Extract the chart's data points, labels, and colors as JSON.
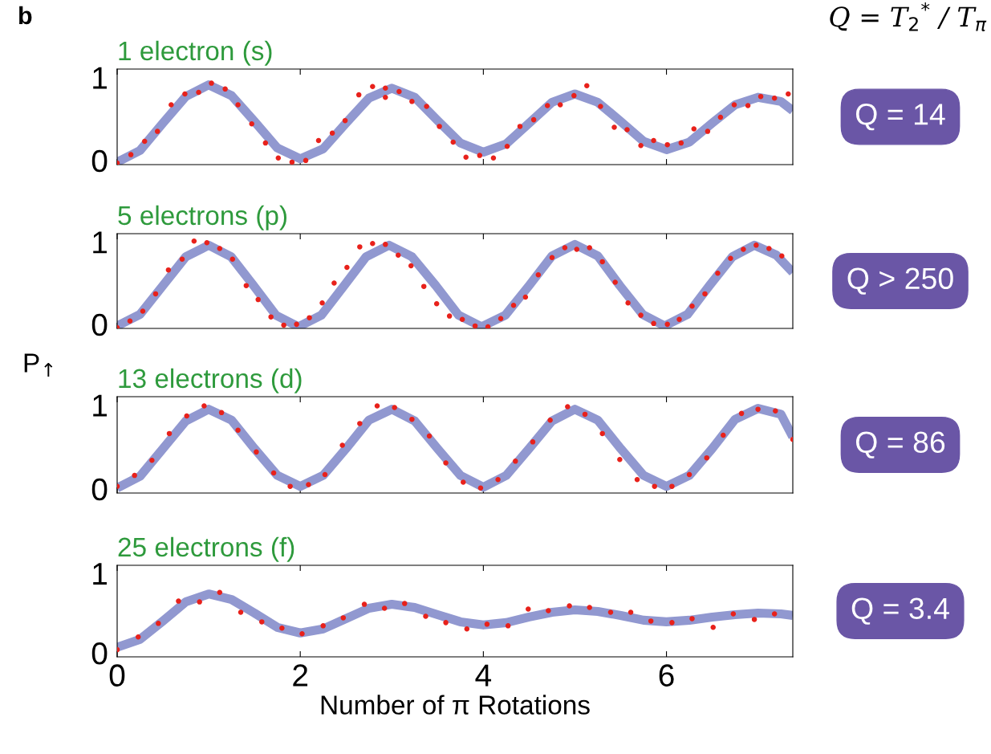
{
  "chart_data": [
    {
      "type": "scatter",
      "title": "1 electron (s)",
      "annotations": [
        "b",
        "Q = T$_{2}$$^{*}$ / T$_{π}$",
        "Q = 14"
      ],
      "xlim": [
        0,
        7.38
      ],
      "xticks": [
        0,
        2,
        4,
        6
      ],
      "ylim": [
        -0.05,
        1.1
      ],
      "yticks": [
        0,
        1
      ],
      "tick_labels": "y",
      "grid": false,
      "legend": false,
      "series": [
        {
          "type": "line",
          "color": "#9198d0",
          "line_style": "solid",
          "marker": "none",
          "x": [
            0,
            0.25,
            0.5,
            0.75,
            1,
            1.25,
            1.5,
            1.75,
            2,
            2.25,
            2.5,
            2.75,
            3,
            3.25,
            3.5,
            3.75,
            4,
            4.25,
            4.5,
            4.75,
            5,
            5.25,
            5.5,
            5.75,
            6,
            6.25,
            6.5,
            6.75,
            7,
            7.25,
            7.38
          ],
          "values": [
            -0.02,
            0.12,
            0.45,
            0.77,
            0.91,
            0.78,
            0.47,
            0.15,
            0.02,
            0.14,
            0.45,
            0.75,
            0.87,
            0.76,
            0.48,
            0.21,
            0.1,
            0.2,
            0.45,
            0.7,
            0.8,
            0.7,
            0.47,
            0.23,
            0.13,
            0.22,
            0.45,
            0.67,
            0.76,
            0.71,
            0.6
          ]
        },
        {
          "color": "#e8211b",
          "marker": "circle",
          "x": [
            0.0,
            0.15,
            0.3,
            0.44,
            0.59,
            0.74,
            0.89,
            1.03,
            1.18,
            1.32,
            1.47,
            1.62,
            1.76,
            1.91,
            2.06,
            2.2,
            2.35,
            2.49,
            2.64,
            2.79,
            2.93,
            2.93,
            3.08,
            3.22,
            3.38,
            3.52,
            3.67,
            3.81,
            3.96,
            4.11,
            4.26,
            4.4,
            4.55,
            4.7,
            4.84,
            4.99,
            5.13,
            5.28,
            5.43,
            5.57,
            5.72,
            5.86,
            6.01,
            6.16,
            6.3,
            6.45,
            6.59,
            6.74,
            6.89,
            7.03,
            7.18,
            7.33
          ],
          "values": [
            -0.03,
            0.07,
            0.23,
            0.35,
            0.67,
            0.8,
            0.82,
            0.93,
            0.86,
            0.67,
            0.44,
            0.21,
            0.03,
            -0.02,
            0.0,
            0.24,
            0.33,
            0.48,
            0.79,
            0.89,
            0.87,
            0.76,
            0.83,
            0.71,
            0.65,
            0.41,
            0.22,
            0.04,
            0.06,
            0.03,
            0.17,
            0.41,
            0.49,
            0.66,
            0.67,
            0.78,
            0.9,
            0.65,
            0.4,
            0.37,
            0.18,
            0.24,
            0.19,
            0.21,
            0.38,
            0.35,
            0.52,
            0.67,
            0.66,
            0.77,
            0.75,
            0.8
          ]
        }
      ]
    },
    {
      "type": "scatter",
      "title": "5 electrons (p)",
      "ylabel": "P$_{↑}$",
      "annotations": [
        "Q > 250"
      ],
      "xlim": [
        0,
        7.38
      ],
      "xticks": [
        0,
        2,
        4,
        6
      ],
      "ylim": [
        -0.05,
        1.1
      ],
      "yticks": [
        0,
        1
      ],
      "tick_labels": "y",
      "grid": false,
      "legend": false,
      "series": [
        {
          "type": "line",
          "color": "#9198d0",
          "line_style": "solid",
          "marker": "none",
          "x": [
            0,
            0.25,
            0.5,
            0.75,
            1.0,
            1.245,
            1.49,
            1.735,
            1.98,
            2.23,
            2.48,
            2.72,
            2.97,
            3.22,
            3.48,
            3.73,
            3.98,
            4.24,
            4.5,
            4.75,
            5.0,
            5.25,
            5.49,
            5.74,
            5.98,
            6.23,
            6.47,
            6.72,
            6.96,
            7.2,
            7.38
          ],
          "values": [
            -0.02,
            0.12,
            0.47,
            0.82,
            0.96,
            0.82,
            0.47,
            0.11,
            -0.03,
            0.11,
            0.47,
            0.82,
            0.96,
            0.82,
            0.47,
            0.11,
            -0.03,
            0.11,
            0.47,
            0.83,
            0.97,
            0.83,
            0.47,
            0.12,
            -0.02,
            0.12,
            0.47,
            0.82,
            0.96,
            0.84,
            0.63
          ]
        },
        {
          "color": "#e8211b",
          "marker": "circle",
          "x": [
            0.0,
            0.14,
            0.28,
            0.42,
            0.56,
            0.71,
            0.84,
            0.98,
            1.12,
            1.26,
            1.41,
            1.54,
            1.68,
            1.82,
            1.96,
            2.1,
            2.24,
            2.37,
            2.51,
            2.65,
            2.79,
            2.93,
            3.07,
            3.21,
            3.35,
            3.49,
            3.63,
            3.77,
            3.91,
            4.05,
            4.19,
            4.33,
            4.46,
            4.6,
            4.75,
            4.89,
            5.02,
            5.16,
            5.3,
            5.44,
            5.58,
            5.72,
            5.86,
            6.01,
            6.14,
            6.28,
            6.42,
            6.56,
            6.7,
            6.84,
            6.98,
            7.12,
            7.26
          ],
          "values": [
            -0.04,
            0.04,
            0.16,
            0.37,
            0.66,
            0.79,
            1.01,
            0.99,
            0.92,
            0.79,
            0.47,
            0.3,
            0.09,
            -0.01,
            0.0,
            0.08,
            0.26,
            0.5,
            0.69,
            0.94,
            0.98,
            0.97,
            0.84,
            0.71,
            0.46,
            0.25,
            0.1,
            0.06,
            -0.02,
            -0.03,
            0.07,
            0.23,
            0.33,
            0.6,
            0.81,
            0.93,
            0.91,
            0.93,
            0.76,
            0.51,
            0.26,
            0.11,
            0.01,
            0.0,
            0.06,
            0.22,
            0.37,
            0.62,
            0.8,
            0.91,
            0.96,
            0.92,
            0.83
          ]
        }
      ]
    },
    {
      "type": "scatter",
      "title": "13 electrons (d)",
      "annotations": [
        "Q = 86"
      ],
      "xlim": [
        0,
        7.38
      ],
      "xticks": [
        0,
        2,
        4,
        6
      ],
      "ylim": [
        -0.05,
        1.1
      ],
      "yticks": [
        0,
        1
      ],
      "tick_labels": "y",
      "grid": false,
      "legend": false,
      "series": [
        {
          "type": "line",
          "color": "#9198d0",
          "line_style": "solid",
          "marker": "none",
          "x": [
            0,
            0.25,
            0.5,
            0.75,
            1,
            1.25,
            1.5,
            1.75,
            2,
            2.25,
            2.5,
            2.75,
            3,
            3.25,
            3.5,
            3.75,
            4,
            4.25,
            4.5,
            4.75,
            5,
            5.25,
            5.5,
            5.75,
            6,
            6.25,
            6.5,
            6.75,
            7,
            7.25,
            7.38
          ],
          "values": [
            0.01,
            0.15,
            0.48,
            0.81,
            0.95,
            0.82,
            0.48,
            0.16,
            0.03,
            0.16,
            0.48,
            0.82,
            0.95,
            0.81,
            0.48,
            0.16,
            0.02,
            0.16,
            0.48,
            0.81,
            0.95,
            0.82,
            0.48,
            0.16,
            0.03,
            0.16,
            0.48,
            0.83,
            0.96,
            0.89,
            0.62
          ]
        },
        {
          "color": "#e8211b",
          "marker": "circle",
          "x": [
            0.0,
            0.19,
            0.38,
            0.57,
            0.76,
            0.95,
            1.14,
            1.32,
            1.52,
            1.71,
            1.89,
            2.09,
            2.27,
            2.46,
            2.65,
            2.84,
            3.03,
            3.22,
            3.41,
            3.59,
            3.78,
            3.97,
            4.16,
            4.35,
            4.54,
            4.73,
            4.92,
            5.11,
            5.3,
            5.49,
            5.68,
            5.87,
            6.06,
            6.25,
            6.44,
            6.62,
            6.82,
            7.0,
            7.19,
            7.38
          ],
          "values": [
            0.03,
            0.16,
            0.34,
            0.66,
            0.87,
            0.99,
            0.91,
            0.7,
            0.44,
            0.19,
            0.03,
            0.05,
            0.17,
            0.52,
            0.78,
            0.99,
            0.97,
            0.83,
            0.63,
            0.31,
            0.08,
            0.01,
            0.11,
            0.33,
            0.56,
            0.82,
            0.98,
            0.89,
            0.66,
            0.35,
            0.11,
            0.03,
            0.03,
            0.17,
            0.37,
            0.64,
            0.9,
            0.95,
            0.93,
            0.59
          ]
        }
      ]
    },
    {
      "type": "scatter",
      "title": "25 electrons (f)",
      "xlabel": "Number of π Rotations",
      "annotations": [
        "Q = 3.4"
      ],
      "xlim": [
        0,
        7.38
      ],
      "xticks": [
        0,
        2,
        4,
        6
      ],
      "ylim": [
        -0.05,
        1.1
      ],
      "yticks": [
        0,
        1
      ],
      "grid": false,
      "legend": false,
      "series": [
        {
          "type": "line",
          "color": "#9198d0",
          "line_style": "solid",
          "marker": "none",
          "x": [
            0,
            0.25,
            0.5,
            0.75,
            1,
            1.25,
            1.5,
            1.75,
            2,
            2.25,
            2.5,
            2.75,
            3,
            3.25,
            3.5,
            3.75,
            4,
            4.25,
            4.5,
            4.75,
            5,
            5.25,
            5.5,
            5.75,
            6,
            6.25,
            6.5,
            6.75,
            7,
            7.25,
            7.38
          ],
          "values": [
            0.07,
            0.17,
            0.4,
            0.64,
            0.74,
            0.67,
            0.5,
            0.32,
            0.25,
            0.3,
            0.43,
            0.56,
            0.61,
            0.57,
            0.48,
            0.39,
            0.35,
            0.38,
            0.45,
            0.51,
            0.54,
            0.52,
            0.47,
            0.41,
            0.39,
            0.41,
            0.45,
            0.48,
            0.5,
            0.49,
            0.47
          ]
        },
        {
          "color": "#e8211b",
          "marker": "circle",
          "x": [
            0.0,
            0.23,
            0.45,
            0.67,
            0.9,
            1.12,
            1.35,
            1.58,
            1.8,
            2.02,
            2.25,
            2.47,
            2.7,
            2.92,
            3.14,
            3.37,
            3.59,
            3.82,
            4.04,
            4.27,
            4.49,
            4.71,
            4.94,
            5.16,
            5.39,
            5.61,
            5.83,
            6.06,
            6.28,
            6.51,
            6.73,
            6.96,
            7.18
          ],
          "values": [
            0.04,
            0.2,
            0.37,
            0.65,
            0.64,
            0.76,
            0.51,
            0.39,
            0.31,
            0.24,
            0.34,
            0.44,
            0.61,
            0.56,
            0.62,
            0.46,
            0.38,
            0.3,
            0.36,
            0.34,
            0.55,
            0.53,
            0.59,
            0.57,
            0.51,
            0.51,
            0.4,
            0.38,
            0.43,
            0.32,
            0.49,
            0.42,
            0.49
          ]
        }
      ]
    }
  ]
}
